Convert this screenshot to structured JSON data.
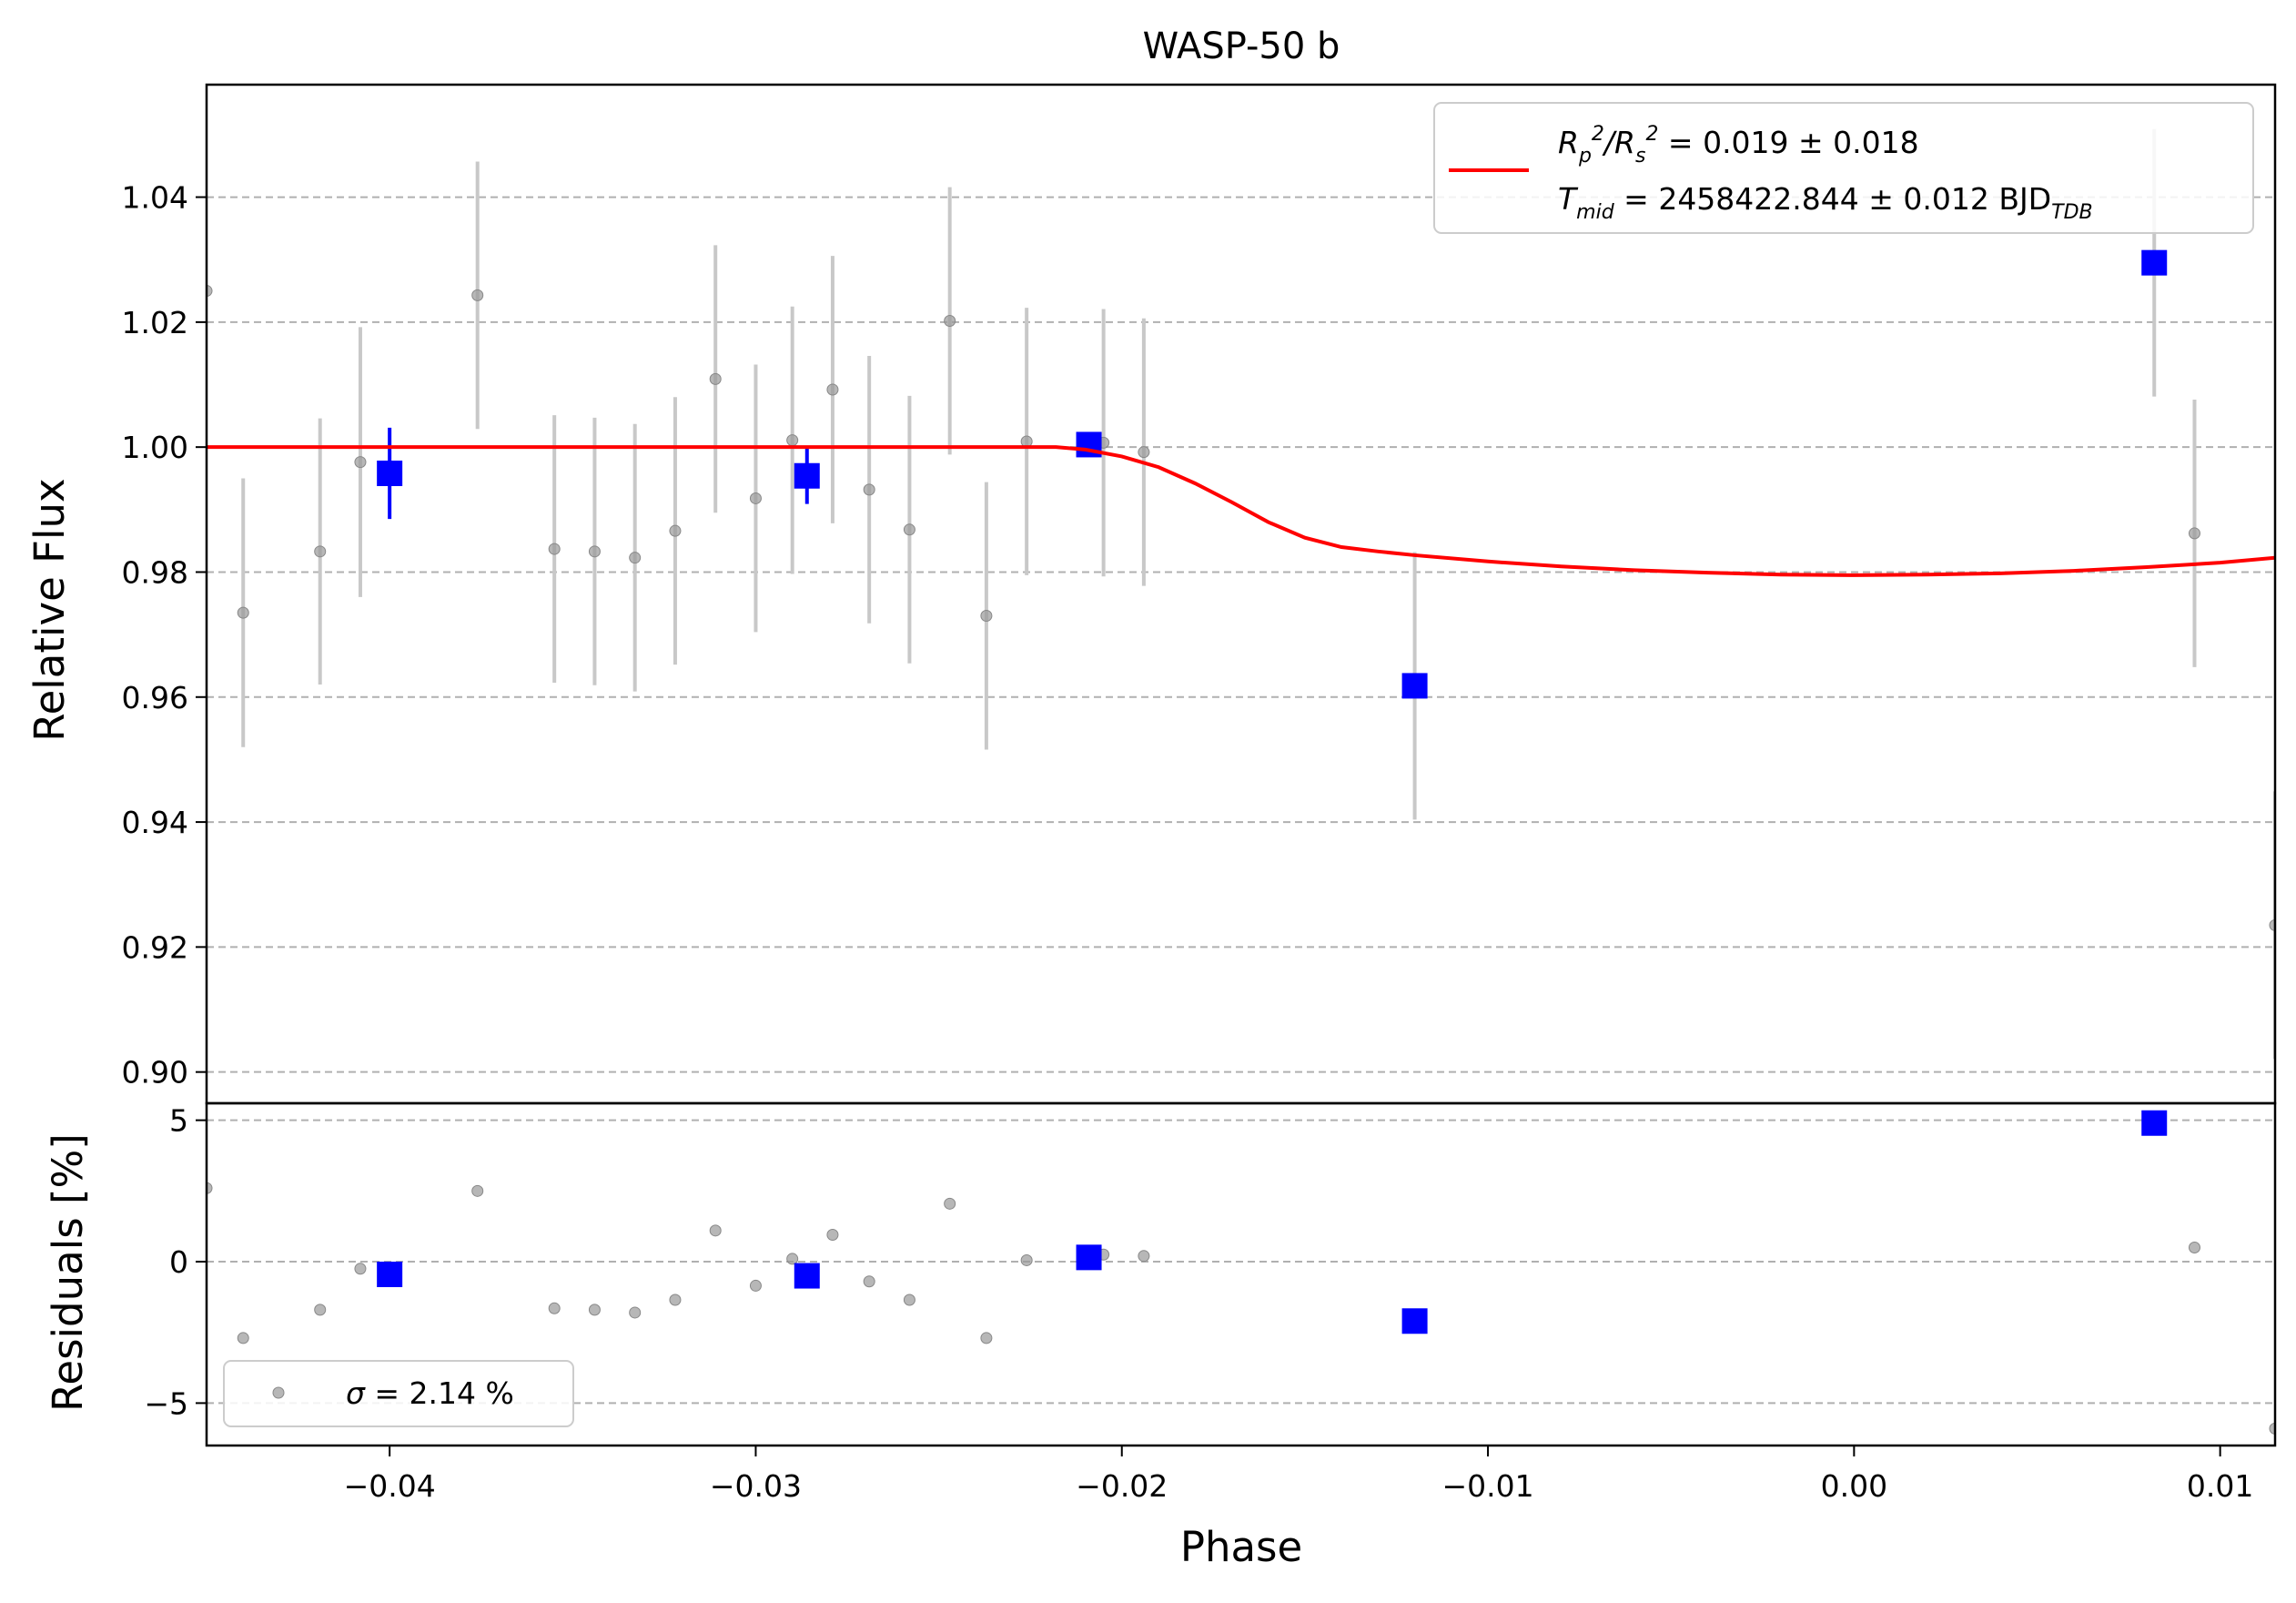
{
  "chart_data": [
    {
      "type": "scatter",
      "panel": "flux",
      "title": "WASP-50 b",
      "xlabel": "",
      "ylabel": "Relative Flux",
      "xlim": [
        -0.045,
        0.0115
      ],
      "ylim": [
        0.895,
        1.058
      ],
      "yticks": [
        0.9,
        0.92,
        0.94,
        0.96,
        0.98,
        1.0,
        1.02,
        1.04
      ],
      "ytick_labels": [
        "0.90",
        "0.92",
        "0.94",
        "0.96",
        "0.98",
        "1.00",
        "1.02",
        "1.04"
      ],
      "grid": "horizontal-dashed",
      "legend_position": "top-right",
      "legend": [
        {
          "label_main": "R",
          "sub1": "p",
          "sup1": "2",
          "sep": "/R",
          "sub2": "s",
          "sup2": "2",
          "value": " = 0.019 ± 0.018",
          "color": "#ff0000",
          "marker": "line"
        },
        {
          "label_main": "T",
          "sub1": "mid",
          "value": " = 2458422.844 ± 0.012 BJD",
          "sub_end": "TDB"
        }
      ],
      "series": [
        {
          "style": "raw",
          "color": "#a0a0a0",
          "points": [
            {
              "x": -0.045,
              "y": 1.025,
              "err": 0.0
            },
            {
              "x": -0.044,
              "y": 0.9735,
              "err": 0.0215
            },
            {
              "x": -0.0419,
              "y": 0.9833,
              "err": 0.0213
            },
            {
              "x": -0.0408,
              "y": 0.9976,
              "err": 0.0216
            },
            {
              "x": -0.0376,
              "y": 1.0243,
              "err": 0.0214
            },
            {
              "x": -0.0355,
              "y": 0.9837,
              "err": 0.0214
            },
            {
              "x": -0.0344,
              "y": 0.9833,
              "err": 0.0214
            },
            {
              "x": -0.0333,
              "y": 0.9823,
              "err": 0.0214
            },
            {
              "x": -0.0322,
              "y": 0.9866,
              "err": 0.0214
            },
            {
              "x": -0.0311,
              "y": 1.0109,
              "err": 0.0214
            },
            {
              "x": -0.03,
              "y": 0.9918,
              "err": 0.0214
            },
            {
              "x": -0.029,
              "y": 1.0011,
              "err": 0.0214
            },
            {
              "x": -0.0279,
              "y": 1.0092,
              "err": 0.0214
            },
            {
              "x": -0.0269,
              "y": 0.9932,
              "err": 0.0214
            },
            {
              "x": -0.0258,
              "y": 0.9868,
              "err": 0.0214
            },
            {
              "x": -0.0247,
              "y": 1.0202,
              "err": 0.0214
            },
            {
              "x": -0.0237,
              "y": 0.973,
              "err": 0.0214
            },
            {
              "x": -0.0226,
              "y": 1.0009,
              "err": 0.0214
            },
            {
              "x": -0.0205,
              "y": 1.0007,
              "err": 0.0214
            },
            {
              "x": -0.0194,
              "y": 0.9992,
              "err": 0.0214
            },
            {
              "x": -0.012,
              "y": 0.9618,
              "err": 0.0214
            },
            {
              "x": 0.0082,
              "y": 1.0295,
              "err": 0.0214
            },
            {
              "x": 0.0093,
              "y": 0.9862,
              "err": 0.0214
            },
            {
              "x": 0.0115,
              "y": 0.9235,
              "err": 0.0214
            }
          ]
        },
        {
          "style": "binned",
          "color": "#0000ff",
          "points": [
            {
              "x": -0.04,
              "y": 0.9958,
              "err": 0.0073
            },
            {
              "x": -0.0286,
              "y": 0.9954,
              "err": 0.0045
            },
            {
              "x": -0.0209,
              "y": 1.0004,
              "err": 0.0
            },
            {
              "x": -0.012,
              "y": 0.9618,
              "err": 0.0
            },
            {
              "x": 0.0082,
              "y": 1.0295,
              "err": 0.0
            }
          ]
        },
        {
          "style": "model",
          "color": "#ff0000",
          "points": [
            [
              -0.045,
              1.0
            ],
            [
              -0.0218,
              1.0
            ],
            [
              -0.021,
              0.9996
            ],
            [
              -0.02,
              0.9985
            ],
            [
              -0.019,
              0.9968
            ],
            [
              -0.018,
              0.9942
            ],
            [
              -0.017,
              0.9912
            ],
            [
              -0.016,
              0.988
            ],
            [
              -0.015,
              0.9855
            ],
            [
              -0.014,
              0.984
            ],
            [
              -0.013,
              0.9833
            ],
            [
              -0.012,
              0.9827
            ],
            [
              -0.01,
              0.9817
            ],
            [
              -0.008,
              0.9809
            ],
            [
              -0.006,
              0.9803
            ],
            [
              -0.004,
              0.9799
            ],
            [
              -0.002,
              0.9796
            ],
            [
              0.0,
              0.9795
            ],
            [
              0.002,
              0.9796
            ],
            [
              0.004,
              0.9798
            ],
            [
              0.006,
              0.9802
            ],
            [
              0.008,
              0.9808
            ],
            [
              0.01,
              0.9815
            ],
            [
              0.0115,
              0.9823
            ]
          ]
        }
      ]
    },
    {
      "type": "scatter",
      "panel": "residuals",
      "xlabel": "Phase",
      "ylabel": "Residuals [%]",
      "xlim": [
        -0.045,
        0.0115
      ],
      "ylim": [
        -6.5,
        5.6
      ],
      "xticks": [
        -0.04,
        -0.03,
        -0.02,
        -0.01,
        0.0,
        0.01
      ],
      "xtick_labels": [
        "−0.04",
        "−0.03",
        "−0.02",
        "−0.01",
        "0.00",
        "0.01"
      ],
      "yticks": [
        -5,
        0,
        5
      ],
      "ytick_labels": [
        "−5",
        "0",
        "5"
      ],
      "grid": "horizontal-dashed",
      "legend_position": "lower-left",
      "legend": [
        {
          "label_main": "σ",
          "value": " = 2.14 %",
          "color": "#a0a0a0",
          "marker": "point"
        }
      ],
      "series": [
        {
          "style": "raw",
          "color": "#a0a0a0",
          "points": [
            [
              -0.045,
              2.6
            ],
            [
              -0.044,
              -2.7
            ],
            [
              -0.0419,
              -1.7
            ],
            [
              -0.0408,
              -0.25
            ],
            [
              -0.0376,
              2.5
            ],
            [
              -0.0355,
              -1.65
            ],
            [
              -0.0344,
              -1.7
            ],
            [
              -0.0333,
              -1.8
            ],
            [
              -0.0322,
              -1.35
            ],
            [
              -0.0311,
              1.1
            ],
            [
              -0.03,
              -0.85
            ],
            [
              -0.029,
              0.1
            ],
            [
              -0.0279,
              0.95
            ],
            [
              -0.0269,
              -0.7
            ],
            [
              -0.0258,
              -1.35
            ],
            [
              -0.0247,
              2.05
            ],
            [
              -0.0237,
              -2.7
            ],
            [
              -0.0226,
              0.05
            ],
            [
              -0.0205,
              0.25
            ],
            [
              -0.0194,
              0.2
            ],
            [
              -0.012,
              -2.1
            ],
            [
              0.0082,
              4.9
            ],
            [
              0.0093,
              0.5
            ],
            [
              0.0115,
              -5.9
            ]
          ]
        },
        {
          "style": "binned",
          "color": "#0000ff",
          "points": [
            [
              -0.04,
              -0.45
            ],
            [
              -0.0286,
              -0.5
            ],
            [
              -0.0209,
              0.15
            ],
            [
              -0.012,
              -2.1
            ],
            [
              0.0082,
              4.9
            ]
          ]
        }
      ]
    }
  ]
}
